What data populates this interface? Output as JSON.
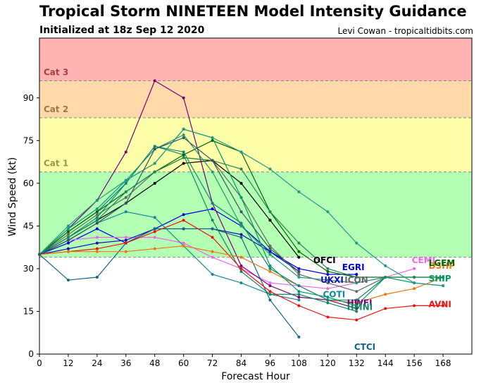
{
  "header": {
    "title": "Tropical Storm NINETEEN Model Intensity Guidance",
    "subtitle": "Initialized at 18z Sep 12 2020",
    "credit": "Levi Cowan - tropicaltidbits.com"
  },
  "chart_data": {
    "type": "line",
    "xlabel": "Forecast Hour",
    "ylabel": "Wind Speed (kt)",
    "xlim": [
      0,
      180
    ],
    "ylim": [
      0,
      111
    ],
    "xticks": [
      0,
      12,
      24,
      36,
      48,
      60,
      72,
      84,
      96,
      108,
      120,
      132,
      144,
      156,
      168
    ],
    "yticks": [
      0,
      15,
      30,
      45,
      60,
      75,
      90
    ],
    "grid": false,
    "bands": [
      {
        "label": "",
        "from": 34,
        "to": 64,
        "color": "#b3ffb3"
      },
      {
        "label": "Cat 1",
        "from": 64,
        "to": 83,
        "color": "#ffffaa",
        "text_color": "#9a9a3a"
      },
      {
        "label": "Cat 2",
        "from": 83,
        "to": 96,
        "color": "#ffd9aa",
        "text_color": "#9a7a40"
      },
      {
        "label": "Cat 3",
        "from": 96,
        "to": 111,
        "color": "#ffb3b3",
        "text_color": "#a04040"
      }
    ],
    "series": [
      {
        "name": "OFCI",
        "color": "#000000",
        "label_pos": [
          114,
          32
        ],
        "x": [
          0,
          12,
          24,
          36,
          48,
          60,
          72,
          84,
          96,
          108
        ],
        "y": [
          35,
          41,
          47,
          53,
          60,
          67,
          68,
          60,
          47,
          34
        ]
      },
      {
        "name": "EGRI",
        "color": "#0000dd",
        "label_pos": [
          126,
          29.5
        ],
        "x": [
          0,
          12,
          24,
          36,
          48,
          60,
          72,
          84,
          96,
          108,
          120,
          132
        ],
        "y": [
          35,
          39,
          44,
          39,
          44,
          49,
          51,
          45,
          36,
          30,
          28,
          28
        ]
      },
      {
        "name": "CEMI",
        "color": "#ee66ee",
        "label_pos": [
          155,
          32
        ],
        "x": [
          0,
          12,
          24,
          36,
          48,
          60,
          72,
          84,
          96,
          108,
          120,
          132,
          144,
          156
        ],
        "y": [
          35,
          40,
          41,
          41,
          41,
          39,
          34,
          30,
          25,
          24,
          23,
          25,
          27,
          30
        ]
      },
      {
        "name": "UKXI",
        "color": "#1111bb",
        "label_pos": [
          117,
          25
        ],
        "x": [
          0,
          12,
          24,
          36,
          48,
          60,
          72,
          84,
          96,
          108
        ],
        "y": [
          35,
          37,
          39,
          40,
          44,
          44,
          44,
          42,
          36,
          29
        ]
      },
      {
        "name": "ICON",
        "color": "#666666",
        "label_pos": [
          127,
          25
        ],
        "x": [
          0,
          12,
          24,
          36,
          48,
          60,
          72,
          84,
          96,
          108,
          120,
          132,
          144
        ],
        "y": [
          35,
          42,
          49,
          55,
          64,
          69,
          68,
          55,
          38,
          28,
          25,
          22,
          27
        ]
      },
      {
        "name": "COTI",
        "color": "#118899",
        "label_pos": [
          118,
          20
        ],
        "x": [
          0,
          12,
          24,
          36,
          48,
          60,
          72,
          84,
          96,
          108
        ],
        "y": [
          35,
          40,
          46,
          50,
          48,
          38,
          28,
          25,
          21,
          19
        ]
      },
      {
        "name": "HWFI",
        "color": "#770077",
        "label_pos": [
          128,
          17
        ],
        "x": [
          0,
          12,
          24,
          36,
          48,
          60,
          72,
          84,
          96,
          108,
          120,
          132
        ],
        "y": [
          35,
          44,
          54,
          71,
          96,
          90,
          53,
          31,
          24,
          20,
          19,
          16
        ]
      },
      {
        "name": "HMNI",
        "color": "#118866",
        "label_pos": [
          128,
          15.5
        ],
        "x": [
          0,
          12,
          24,
          36,
          48,
          60,
          72,
          84,
          96,
          108,
          120,
          132
        ],
        "y": [
          35,
          43,
          50,
          60,
          73,
          70,
          47,
          29,
          21,
          21,
          18,
          15
        ]
      },
      {
        "name": "CTCI",
        "color": "#116688",
        "label_pos": [
          131,
          1.5
        ],
        "x": [
          0,
          12,
          24,
          36,
          48,
          60,
          72,
          84,
          96,
          108
        ],
        "y": [
          35,
          26,
          27,
          39,
          44,
          44,
          44,
          41,
          19,
          6
        ]
      },
      {
        "name": "AVNI",
        "color": "#ee1111",
        "label_pos": [
          162,
          16.5
        ],
        "x": [
          0,
          12,
          24,
          36,
          48,
          60,
          72,
          84,
          96,
          108,
          120,
          132,
          144,
          156,
          168
        ],
        "y": [
          35,
          36,
          37,
          39,
          43,
          47,
          41,
          30,
          22,
          17,
          13,
          12,
          16,
          17,
          17
        ]
      },
      {
        "name": "DSHP",
        "color": "#ee7711",
        "label_pos": [
          162,
          30
        ],
        "x": [
          0,
          12,
          24,
          36,
          48,
          60,
          72,
          84,
          96,
          108,
          120,
          132,
          144,
          156,
          168
        ],
        "y": [
          35,
          36,
          36,
          36,
          37,
          38,
          36,
          34,
          29,
          24,
          19,
          18,
          21,
          23,
          27
        ]
      },
      {
        "name": "LGEM",
        "color": "#006600",
        "label_pos": [
          162,
          31
        ],
        "x": [
          0,
          12,
          24,
          36,
          48,
          60,
          72,
          84,
          96,
          108,
          120,
          132,
          144,
          156,
          168
        ],
        "y": [
          35,
          43,
          50,
          57,
          64,
          70,
          75,
          71,
          50,
          36,
          29,
          27,
          27,
          27,
          27
        ]
      },
      {
        "name": "SHIP",
        "color": "#009966",
        "label_pos": [
          162,
          25.5
        ],
        "x": [
          0,
          12,
          24,
          36,
          48,
          60,
          72,
          84,
          96,
          108,
          120,
          132,
          144,
          156,
          168
        ],
        "y": [
          35,
          44,
          51,
          61,
          67,
          79,
          76,
          55,
          31,
          22,
          20,
          17,
          27,
          25,
          24
        ]
      },
      {
        "name": "",
        "color": "#229977",
        "x": [
          0,
          12,
          24,
          36,
          48,
          60,
          72,
          84,
          96,
          108,
          120,
          132,
          144
        ],
        "y": [
          35,
          45,
          54,
          61,
          72,
          77,
          64,
          45,
          35,
          27,
          26,
          25,
          27
        ]
      },
      {
        "name": "",
        "color": "#118877",
        "x": [
          0,
          12,
          24,
          36,
          48,
          60,
          72,
          84,
          96,
          108,
          120,
          132,
          144
        ],
        "y": [
          35,
          41,
          48,
          60,
          73,
          71,
          53,
          46,
          30,
          24,
          19,
          19,
          27
        ]
      },
      {
        "name": "",
        "color": "#228855",
        "x": [
          0,
          12,
          24,
          36,
          48,
          60,
          72,
          84,
          96,
          108,
          120,
          132,
          144,
          156,
          168
        ],
        "y": [
          35,
          41,
          47,
          57,
          64,
          69,
          68,
          65,
          50,
          39,
          30,
          27,
          27,
          27,
          27
        ]
      },
      {
        "name": "",
        "color": "#229988",
        "x": [
          0,
          12,
          24,
          36,
          48,
          60,
          72,
          84,
          96,
          108,
          120,
          132,
          144,
          156,
          168
        ],
        "y": [
          35,
          44,
          51,
          61,
          67,
          79,
          76,
          71,
          65,
          57,
          50,
          39,
          31,
          25,
          24
        ]
      },
      {
        "name": "",
        "color": "#335566",
        "x": [
          0,
          12,
          24,
          36,
          48,
          60,
          72,
          84,
          96,
          108
        ],
        "y": [
          35,
          40,
          46,
          53,
          72,
          76,
          68,
          50,
          37,
          29
        ]
      }
    ]
  }
}
